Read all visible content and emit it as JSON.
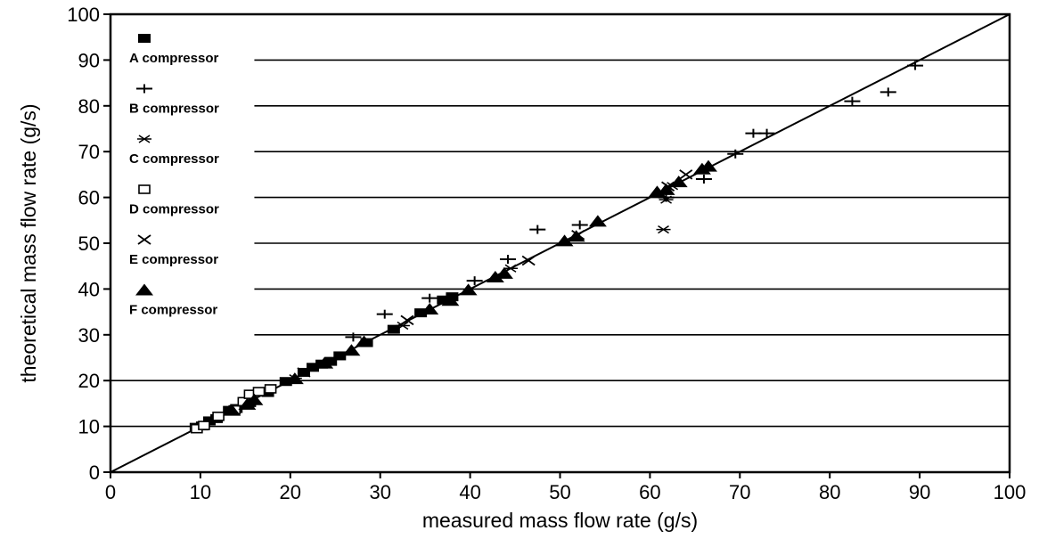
{
  "chart_data": {
    "type": "scatter",
    "xlabel": "measured mass flow rate (g/s)",
    "ylabel": "theoretical mass flow rate (g/s)",
    "xlim": [
      0,
      100
    ],
    "ylim": [
      0,
      100
    ],
    "x_ticks": [
      "0",
      "10",
      "20",
      "30",
      "40",
      "50",
      "60",
      "70",
      "80",
      "90",
      "100"
    ],
    "y_ticks": [
      "0",
      "10",
      "20",
      "30",
      "40",
      "50",
      "60",
      "70",
      "80",
      "90",
      "100"
    ],
    "grid": "horizontal",
    "legend_position": "top-left",
    "reference_line": {
      "x": [
        0,
        100
      ],
      "y": [
        0,
        100
      ]
    },
    "series": [
      {
        "name": "A compressor",
        "marker": "filled-rect",
        "points": [
          [
            9.5,
            9.8
          ],
          [
            10.2,
            10.1
          ],
          [
            11,
            11.2
          ],
          [
            11.8,
            11.7
          ],
          [
            13.2,
            13.5
          ],
          [
            14,
            13.9
          ],
          [
            15.5,
            15.2
          ],
          [
            17.5,
            17.4
          ],
          [
            19.5,
            19.8
          ],
          [
            21.5,
            21.8
          ],
          [
            22.5,
            22.9
          ],
          [
            23.5,
            23.6
          ],
          [
            24.5,
            24.2
          ],
          [
            25.5,
            25.4
          ],
          [
            28.5,
            28.3
          ],
          [
            31.5,
            31.2
          ],
          [
            34.5,
            34.8
          ],
          [
            37,
            37.6
          ],
          [
            38,
            38.3
          ]
        ]
      },
      {
        "name": "B compressor",
        "marker": "plus",
        "points": [
          [
            27,
            29.5
          ],
          [
            30.5,
            34.5
          ],
          [
            35.5,
            38
          ],
          [
            40.5,
            41.8
          ],
          [
            44.2,
            46.5
          ],
          [
            47.5,
            53
          ],
          [
            52.2,
            54
          ],
          [
            61.8,
            60
          ],
          [
            66,
            64
          ],
          [
            69.5,
            69.5
          ],
          [
            71.5,
            74
          ],
          [
            73,
            74
          ],
          [
            82.5,
            81
          ],
          [
            86.5,
            83
          ],
          [
            89.5,
            88.8
          ]
        ]
      },
      {
        "name": "C compressor",
        "marker": "asterisk",
        "points": [
          [
            20.5,
            20.5
          ],
          [
            32.5,
            32
          ],
          [
            44.5,
            44.5
          ],
          [
            61.5,
            53
          ],
          [
            61.8,
            59.5
          ],
          [
            62.5,
            62.5
          ]
        ]
      },
      {
        "name": "D compressor",
        "marker": "open-rect",
        "points": [
          [
            9.6,
            9.5
          ],
          [
            10.4,
            10.2
          ],
          [
            12,
            12.2
          ],
          [
            13.8,
            13.6
          ],
          [
            14.8,
            15.4
          ],
          [
            15.5,
            17
          ],
          [
            16.5,
            17.6
          ],
          [
            17.8,
            18.2
          ]
        ]
      },
      {
        "name": "E compressor",
        "marker": "x",
        "points": [
          [
            21.5,
            21.8
          ],
          [
            33,
            33.2
          ],
          [
            46.5,
            46.2
          ],
          [
            52,
            51.8
          ],
          [
            62,
            62.4
          ],
          [
            64,
            65
          ]
        ]
      },
      {
        "name": "F compressor",
        "marker": "filled-triangle",
        "points": [
          [
            13.5,
            13.5
          ],
          [
            15.2,
            14.8
          ],
          [
            16,
            15.8
          ],
          [
            20.5,
            20.4
          ],
          [
            23.8,
            23.8
          ],
          [
            26.8,
            26.6
          ],
          [
            28.2,
            28.5
          ],
          [
            35.5,
            35.6
          ],
          [
            37.8,
            37.5
          ],
          [
            39.8,
            39.8
          ],
          [
            42.8,
            42.6
          ],
          [
            43.8,
            43.4
          ],
          [
            50.5,
            50.5
          ],
          [
            51.8,
            51.5
          ],
          [
            54.2,
            54.8
          ],
          [
            60.8,
            61.2
          ],
          [
            61.8,
            61.7
          ],
          [
            63.2,
            63.4
          ],
          [
            65.8,
            66.2
          ],
          [
            66.5,
            66.8
          ]
        ]
      }
    ]
  }
}
